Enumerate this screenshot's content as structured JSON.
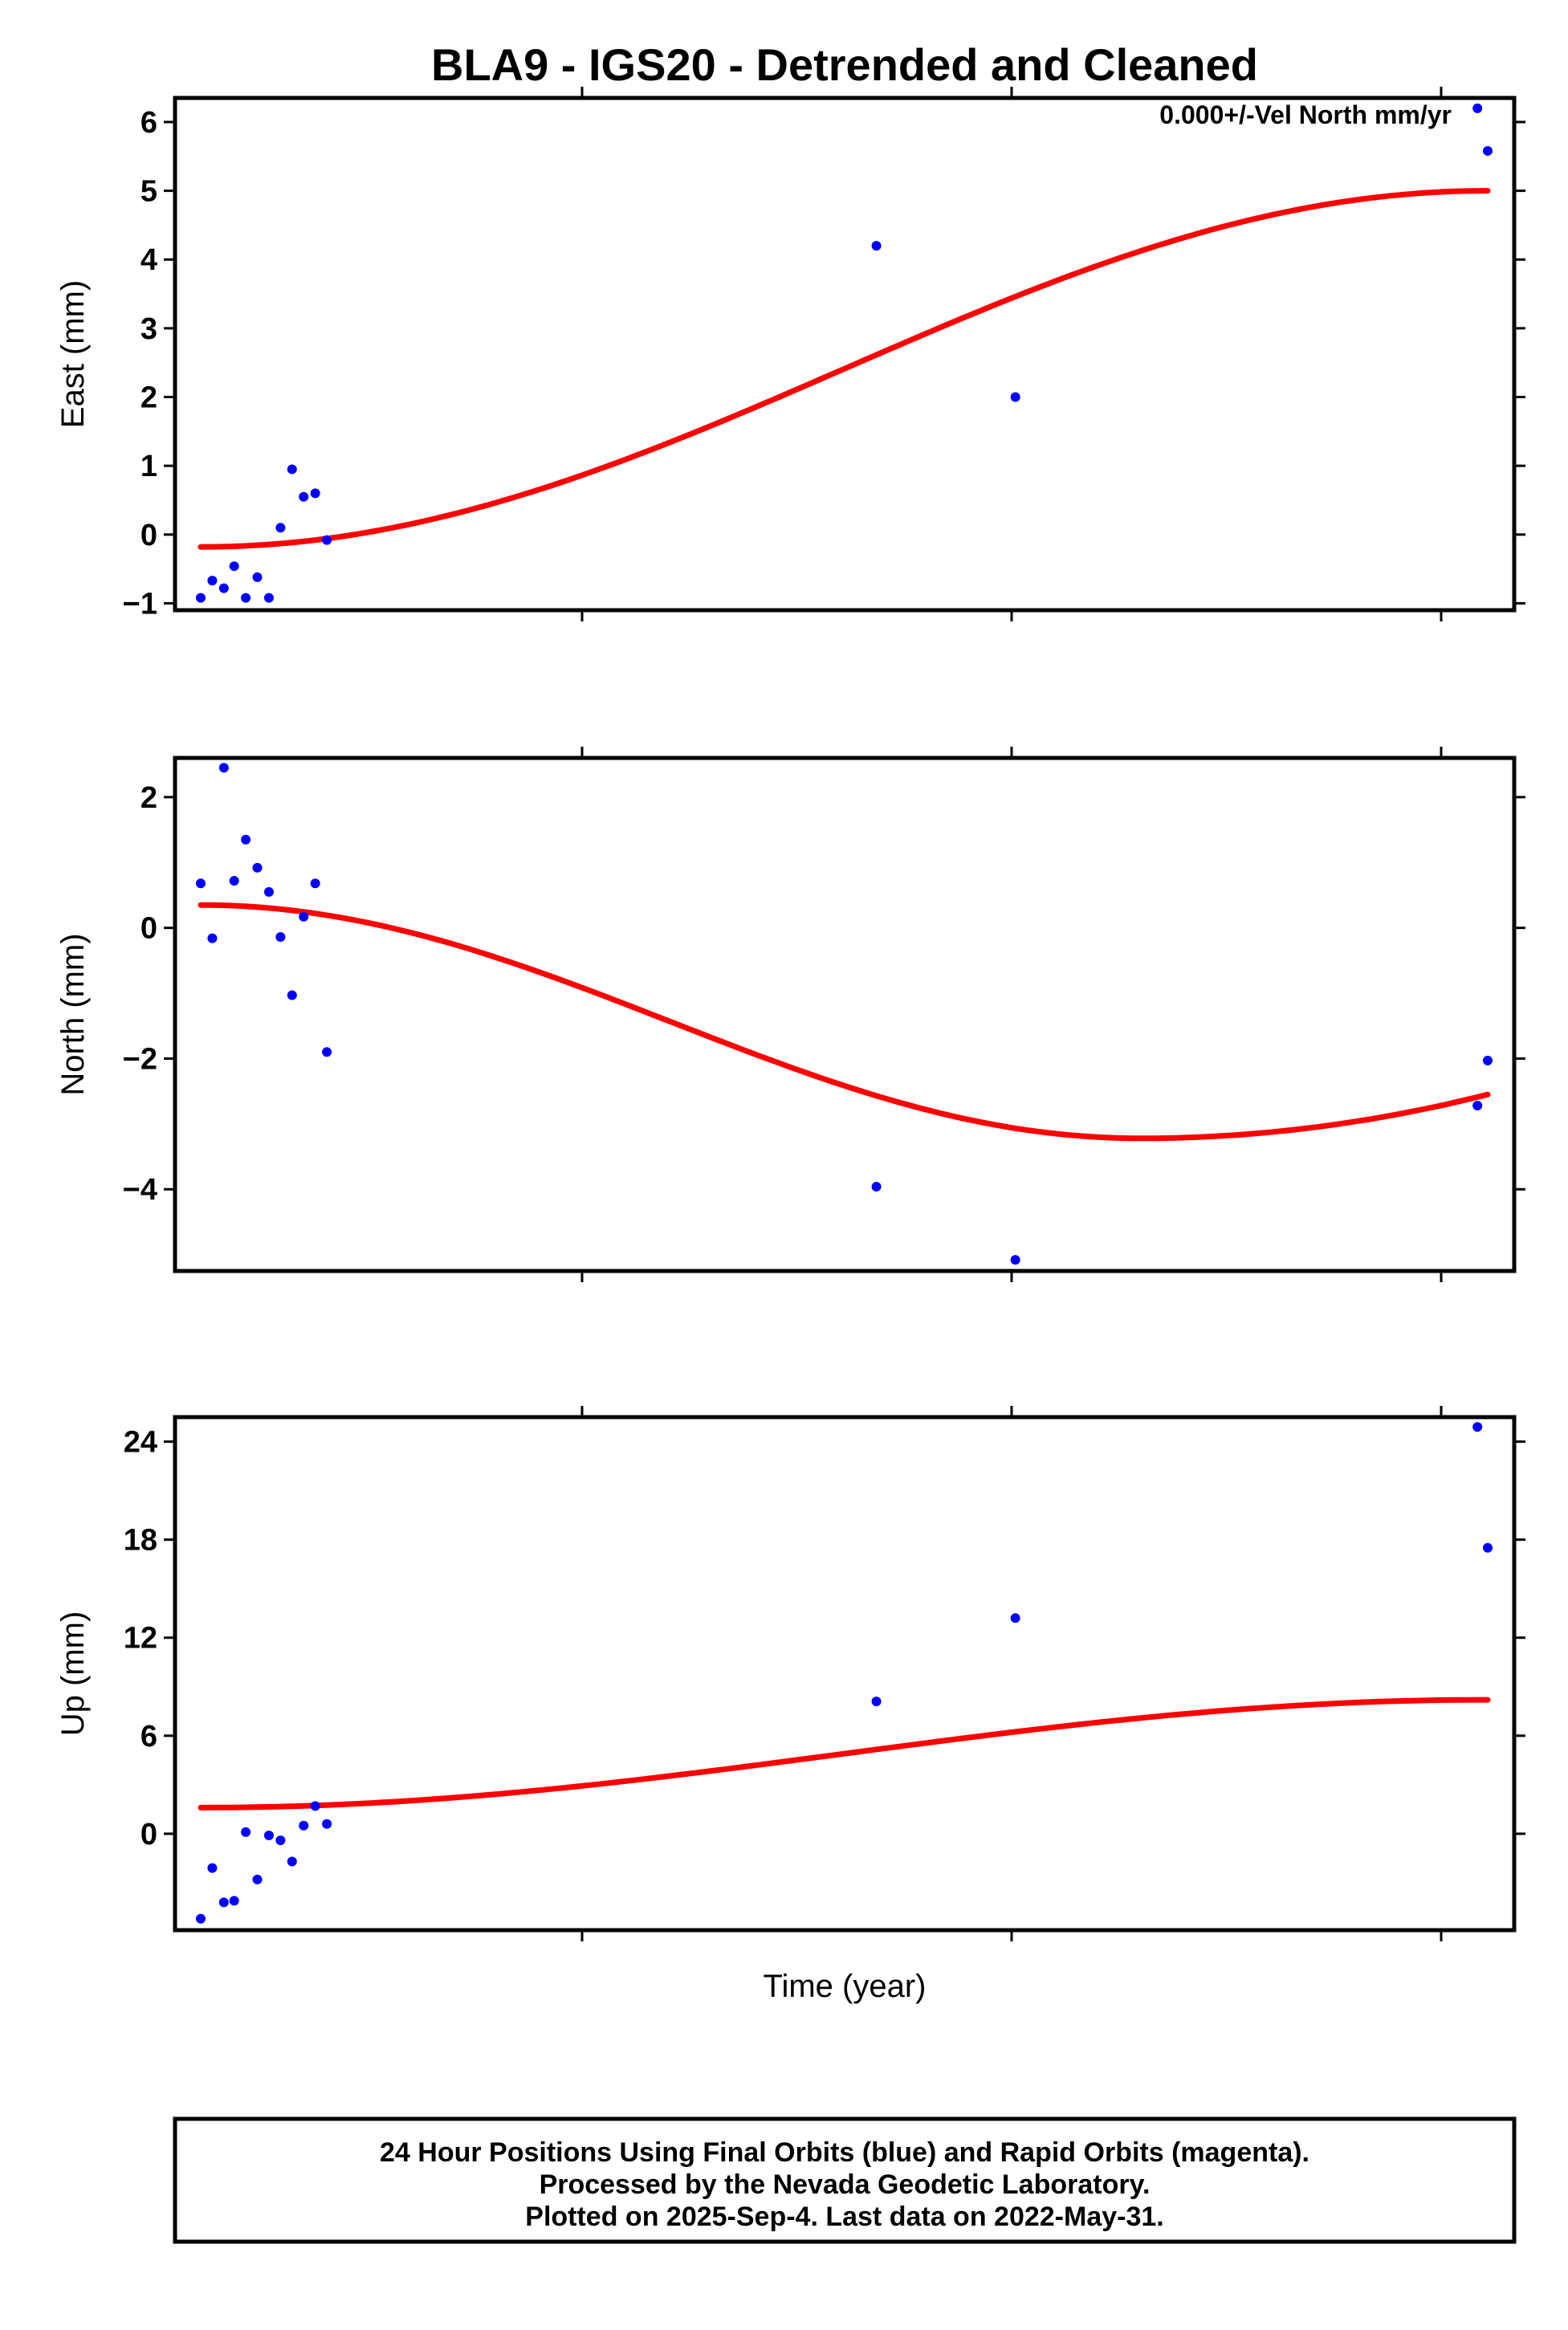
{
  "chart_data": [
    {
      "type": "scatter",
      "title": "BLA9 - IGS20 - Detrended and Cleaned",
      "ylabel": "East (mm)",
      "ylim": [
        -1.1,
        6.35
      ],
      "yticks": [
        -1,
        0,
        1,
        2,
        3,
        4,
        5,
        6
      ],
      "annotation": "0.000+/-Vel North mm/yr",
      "points": [
        {
          "x": 0.0,
          "y": -0.92
        },
        {
          "x": 0.9,
          "y": -0.67
        },
        {
          "x": 1.8,
          "y": -0.78
        },
        {
          "x": 2.6,
          "y": -0.46
        },
        {
          "x": 3.5,
          "y": -0.92
        },
        {
          "x": 4.4,
          "y": -0.62
        },
        {
          "x": 5.3,
          "y": -0.92
        },
        {
          "x": 6.2,
          "y": 0.1
        },
        {
          "x": 7.1,
          "y": 0.95
        },
        {
          "x": 8.0,
          "y": 0.55
        },
        {
          "x": 8.9,
          "y": 0.6
        },
        {
          "x": 9.8,
          "y": -0.08
        },
        {
          "x": 52.5,
          "y": 4.2
        },
        {
          "x": 63.3,
          "y": 2.0
        },
        {
          "x": 99.2,
          "y": 6.2
        },
        {
          "x": 100.0,
          "y": 5.58
        }
      ],
      "fit": {
        "y0": -0.18,
        "y1": 5.0,
        "shape": "rise"
      }
    },
    {
      "type": "scatter",
      "ylabel": "North (mm)",
      "ylim": [
        -5.25,
        2.6
      ],
      "yticks": [
        -4,
        -2,
        0,
        2
      ],
      "points": [
        {
          "x": 0.0,
          "y": 0.68
        },
        {
          "x": 0.9,
          "y": -0.16
        },
        {
          "x": 1.8,
          "y": 2.45
        },
        {
          "x": 2.6,
          "y": 0.72
        },
        {
          "x": 3.5,
          "y": 1.35
        },
        {
          "x": 4.4,
          "y": 0.92
        },
        {
          "x": 5.3,
          "y": 0.55
        },
        {
          "x": 6.2,
          "y": -0.14
        },
        {
          "x": 7.1,
          "y": -1.03
        },
        {
          "x": 8.0,
          "y": 0.17
        },
        {
          "x": 8.9,
          "y": 0.68
        },
        {
          "x": 9.8,
          "y": -1.9
        },
        {
          "x": 52.5,
          "y": -3.96
        },
        {
          "x": 63.3,
          "y": -5.08
        },
        {
          "x": 99.2,
          "y": -2.72
        },
        {
          "x": 100.0,
          "y": -2.03
        }
      ],
      "fit": {
        "y0": 0.35,
        "ymin": -3.22,
        "xmin": 73.0,
        "y1": -2.55,
        "shape": "dip"
      }
    },
    {
      "type": "scatter",
      "xlabel": "Time (year)",
      "ylabel": "Up (mm)",
      "ylim": [
        -5.9,
        25.5
      ],
      "yticks": [
        0,
        6,
        12,
        18,
        24
      ],
      "points": [
        {
          "x": 0.0,
          "y": -5.2
        },
        {
          "x": 0.9,
          "y": -2.1
        },
        {
          "x": 1.8,
          "y": -4.2
        },
        {
          "x": 2.6,
          "y": -4.1
        },
        {
          "x": 3.5,
          "y": 0.1
        },
        {
          "x": 4.4,
          "y": -2.8
        },
        {
          "x": 5.3,
          "y": -0.1
        },
        {
          "x": 6.2,
          "y": -0.4
        },
        {
          "x": 7.1,
          "y": -1.7
        },
        {
          "x": 8.0,
          "y": 0.5
        },
        {
          "x": 8.9,
          "y": 1.7
        },
        {
          "x": 9.8,
          "y": 0.6
        },
        {
          "x": 52.5,
          "y": 8.1
        },
        {
          "x": 63.3,
          "y": 13.2
        },
        {
          "x": 99.2,
          "y": 24.9
        },
        {
          "x": 100.0,
          "y": 17.5
        }
      ],
      "fit": {
        "y0": 1.6,
        "y1": 8.2,
        "shape": "rise"
      }
    }
  ],
  "footer": {
    "line1": "24 Hour Positions Using Final Orbits (blue) and Rapid Orbits (magenta).",
    "line2": "Processed by the Nevada Geodetic Laboratory.",
    "line3": "Plotted on 2025-Sep-4. Last data on 2022-May-31."
  },
  "colors": {
    "points": "#0000ff",
    "fit": "#ff0000",
    "frame": "#000000"
  }
}
